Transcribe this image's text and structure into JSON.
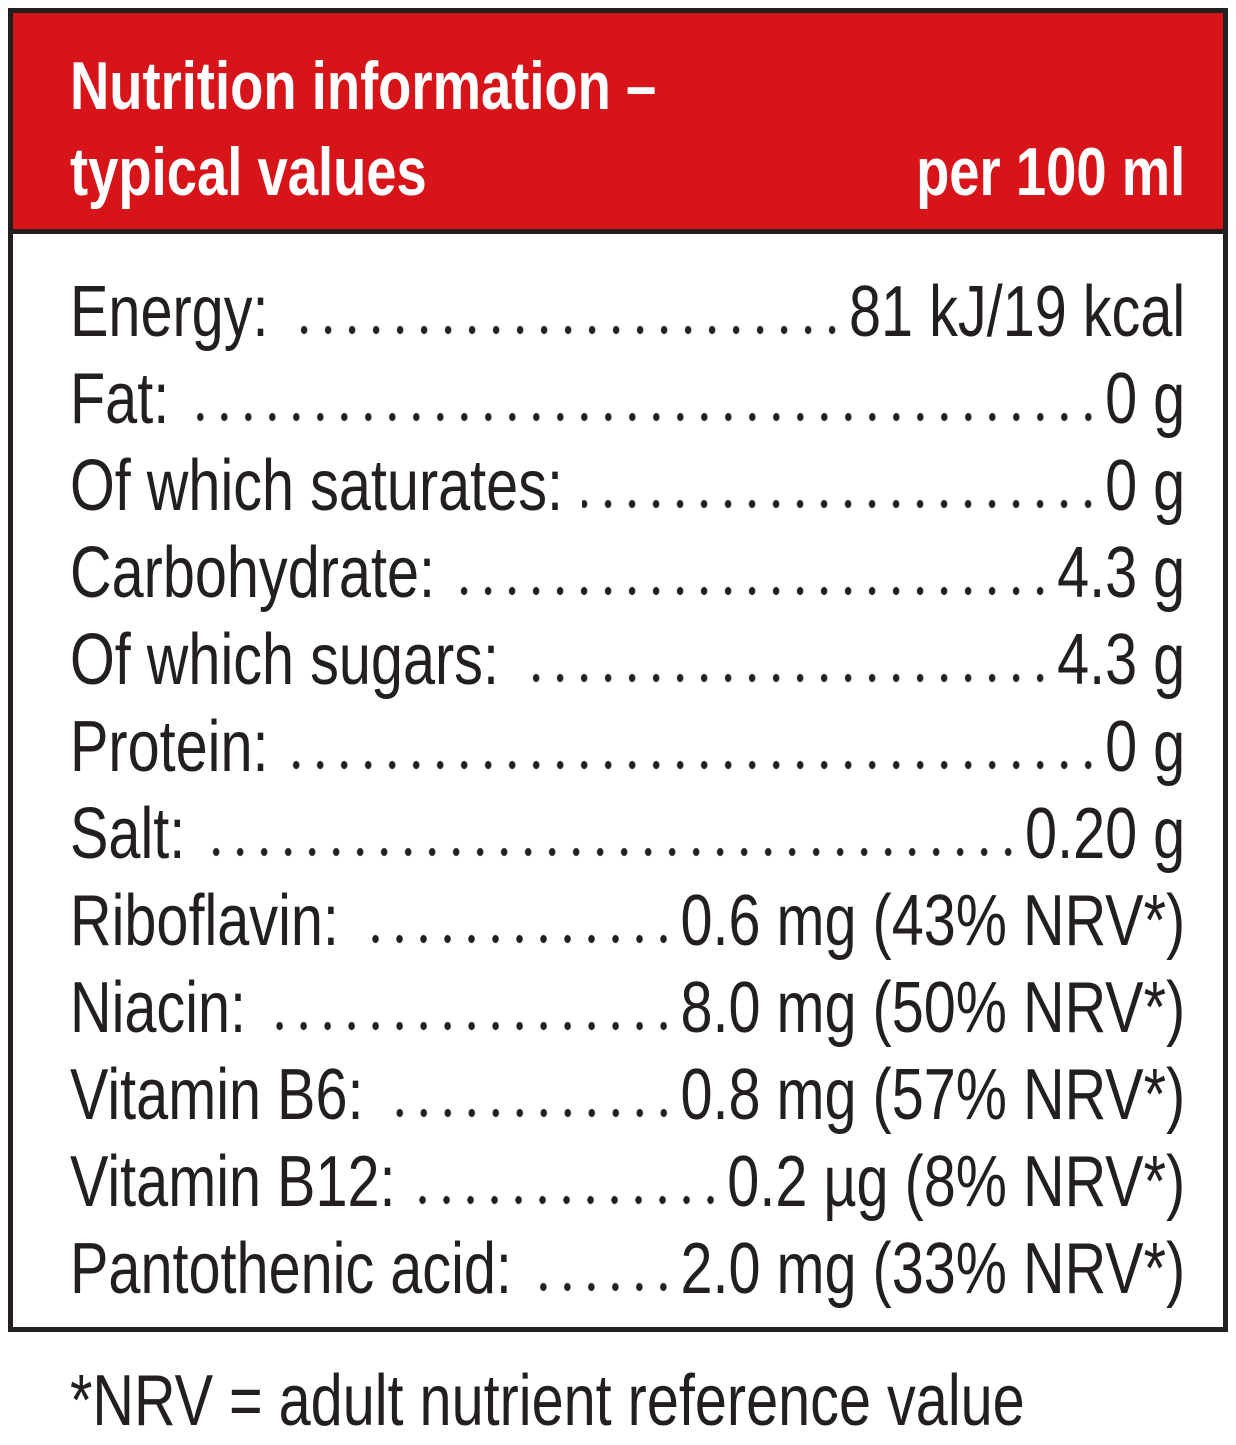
{
  "header": {
    "title": [
      "Nutrition information –",
      "typical values"
    ],
    "column": "per 100 ml"
  },
  "rows": [
    {
      "label": "Energy:",
      "value": "81 kJ/19 kcal"
    },
    {
      "label": "Fat:",
      "value": "0 g"
    },
    {
      "label": "Of which saturates:",
      "value": "0 g"
    },
    {
      "label": "Carbohydrate:",
      "value": "4.3 g"
    },
    {
      "label": "Of which sugars:",
      "value": "4.3 g"
    },
    {
      "label": "Protein:",
      "value": "0 g"
    },
    {
      "label": "Salt:",
      "value": "0.20 g"
    },
    {
      "label": "Riboflavin:",
      "value": "0.6 mg (43% NRV*)"
    },
    {
      "label": "Niacin:",
      "value": "8.0 mg (50% NRV*)"
    },
    {
      "label": "Vitamin B6:",
      "value": "0.8 mg (57% NRV*)"
    },
    {
      "label": "Vitamin B12:",
      "value": "0.2 µg (8% NRV*)"
    },
    {
      "label": "Pantothenic acid:",
      "value": "2.0 mg (33% NRV*)"
    }
  ],
  "footnote": "*NRV = adult nutrient reference value"
}
